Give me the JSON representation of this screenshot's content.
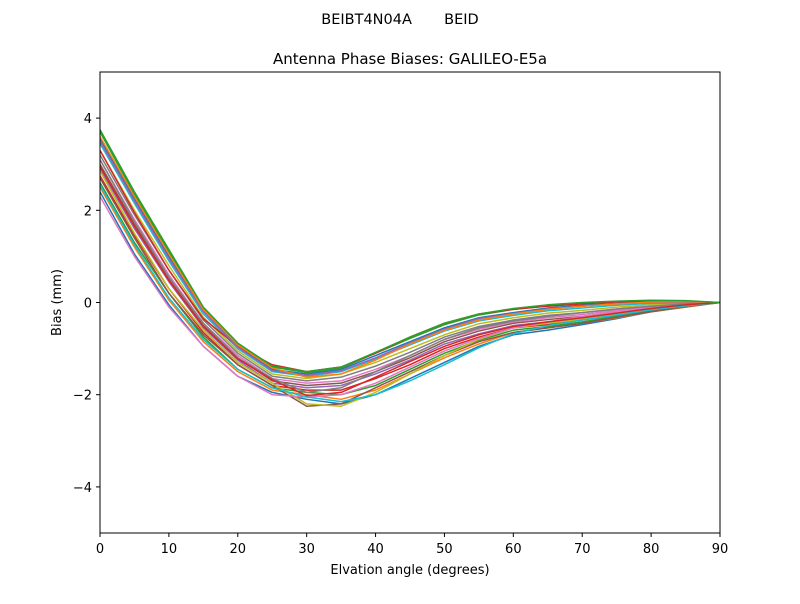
{
  "figure": {
    "suptitle": "BEIBT4N04A       BEID"
  },
  "chart_data": {
    "type": "line",
    "title": "Antenna Phase Biases: GALILEO-E5a",
    "xlabel": "Elvation angle (degrees)",
    "ylabel": "Bias (mm)",
    "xlim": [
      0,
      90
    ],
    "ylim": [
      -5,
      5
    ],
    "xticks": [
      0,
      10,
      20,
      30,
      40,
      50,
      60,
      70,
      80,
      90
    ],
    "yticks": [
      -4,
      -2,
      0,
      2,
      4
    ],
    "xtick_labels": [
      "0",
      "10",
      "20",
      "30",
      "40",
      "50",
      "60",
      "70",
      "80",
      "90"
    ],
    "ytick_labels": [
      "−4",
      "−2",
      "0",
      "2",
      "4"
    ],
    "grid": false,
    "legend": "none",
    "x": [
      0,
      5,
      10,
      15,
      20,
      25,
      30,
      35,
      40,
      45,
      50,
      55,
      60,
      65,
      70,
      75,
      80,
      85,
      90
    ],
    "series": [
      {
        "color": "#1f77b4",
        "values": [
          2.4,
          1.05,
          -0.05,
          -0.95,
          -1.6,
          -1.95,
          -2.1,
          -2.2,
          -2.0,
          -1.65,
          -1.3,
          -0.95,
          -0.7,
          -0.6,
          -0.48,
          -0.35,
          -0.2,
          -0.1,
          0.0
        ]
      },
      {
        "color": "#ff7f0e",
        "values": [
          2.5,
          1.2,
          0.05,
          -0.85,
          -1.5,
          -1.9,
          -2.0,
          -2.1,
          -1.9,
          -1.55,
          -1.2,
          -0.9,
          -0.65,
          -0.55,
          -0.45,
          -0.33,
          -0.2,
          -0.1,
          0.0
        ]
      },
      {
        "color": "#2ca02c",
        "values": [
          2.6,
          1.3,
          0.2,
          -0.75,
          -1.45,
          -1.85,
          -1.95,
          -2.0,
          -1.8,
          -1.45,
          -1.1,
          -0.82,
          -0.6,
          -0.52,
          -0.42,
          -0.3,
          -0.18,
          -0.08,
          0.0
        ]
      },
      {
        "color": "#d62728",
        "values": [
          2.75,
          1.45,
          0.3,
          -0.65,
          -1.35,
          -1.8,
          -1.9,
          -1.9,
          -1.65,
          -1.35,
          -1.0,
          -0.75,
          -0.55,
          -0.48,
          -0.38,
          -0.27,
          -0.16,
          -0.07,
          0.0
        ]
      },
      {
        "color": "#9467bd",
        "values": [
          2.9,
          1.6,
          0.45,
          -0.55,
          -1.25,
          -1.75,
          -1.85,
          -1.8,
          -1.55,
          -1.25,
          -0.9,
          -0.68,
          -0.5,
          -0.42,
          -0.34,
          -0.24,
          -0.14,
          -0.06,
          0.0
        ]
      },
      {
        "color": "#8c564b",
        "values": [
          3.0,
          1.7,
          0.5,
          -0.5,
          -1.2,
          -1.7,
          -1.8,
          -1.75,
          -1.5,
          -1.2,
          -0.85,
          -0.62,
          -0.45,
          -0.37,
          -0.3,
          -0.2,
          -0.12,
          -0.05,
          0.0
        ]
      },
      {
        "color": "#e377c2",
        "values": [
          3.1,
          1.8,
          0.6,
          -0.45,
          -1.15,
          -1.65,
          -1.75,
          -1.7,
          -1.45,
          -1.15,
          -0.8,
          -0.58,
          -0.42,
          -0.33,
          -0.26,
          -0.17,
          -0.1,
          -0.04,
          0.0
        ]
      },
      {
        "color": "#7f7f7f",
        "values": [
          3.2,
          1.9,
          0.7,
          -0.38,
          -1.1,
          -1.6,
          -1.7,
          -1.62,
          -1.38,
          -1.08,
          -0.75,
          -0.52,
          -0.38,
          -0.28,
          -0.22,
          -0.14,
          -0.08,
          -0.03,
          0.0
        ]
      },
      {
        "color": "#bcbd22",
        "values": [
          3.3,
          2.0,
          0.8,
          -0.32,
          -1.05,
          -1.55,
          -1.65,
          -1.55,
          -1.3,
          -1.0,
          -0.7,
          -0.46,
          -0.33,
          -0.23,
          -0.17,
          -0.1,
          -0.05,
          -0.02,
          0.0
        ]
      },
      {
        "color": "#17becf",
        "values": [
          3.45,
          2.15,
          0.9,
          -0.25,
          -1.0,
          -1.5,
          -1.6,
          -1.5,
          -1.22,
          -0.92,
          -0.62,
          -0.4,
          -0.28,
          -0.18,
          -0.12,
          -0.06,
          -0.02,
          -0.01,
          0.0
        ]
      },
      {
        "color": "#1f77b4",
        "values": [
          3.55,
          2.25,
          1.0,
          -0.18,
          -0.95,
          -1.45,
          -1.55,
          -1.45,
          -1.15,
          -0.85,
          -0.55,
          -0.33,
          -0.22,
          -0.12,
          -0.06,
          -0.02,
          0.01,
          0.01,
          0.0
        ]
      },
      {
        "color": "#2ca02c",
        "values": [
          3.7,
          2.35,
          1.1,
          -0.12,
          -0.9,
          -1.4,
          -1.52,
          -1.42,
          -1.1,
          -0.78,
          -0.48,
          -0.27,
          -0.15,
          -0.07,
          -0.02,
          0.02,
          0.04,
          0.03,
          0.0
        ]
      },
      {
        "color": "#d62728",
        "values": [
          3.3,
          1.95,
          0.7,
          -0.35,
          -0.95,
          -1.35,
          -1.5,
          -1.4,
          -1.1,
          -0.75,
          -0.45,
          -0.25,
          -0.15,
          -0.08,
          -0.03,
          0.01,
          0.03,
          0.02,
          0.0
        ]
      },
      {
        "color": "#8c564b",
        "values": [
          2.7,
          1.4,
          0.2,
          -0.7,
          -1.35,
          -1.8,
          -2.25,
          -2.2,
          -1.85,
          -1.5,
          -1.15,
          -0.85,
          -0.65,
          -0.55,
          -0.45,
          -0.32,
          -0.2,
          -0.09,
          0.0
        ]
      },
      {
        "color": "#bcbd22",
        "values": [
          2.85,
          1.5,
          0.3,
          -0.6,
          -1.3,
          -1.75,
          -2.2,
          -2.25,
          -1.95,
          -1.55,
          -1.15,
          -0.8,
          -0.55,
          -0.45,
          -0.36,
          -0.26,
          -0.15,
          -0.07,
          0.0
        ]
      },
      {
        "color": "#e377c2",
        "values": [
          2.3,
          1.0,
          -0.1,
          -0.95,
          -1.6,
          -2.0,
          -2.05,
          -2.0,
          -1.75,
          -1.4,
          -1.05,
          -0.78,
          -0.55,
          -0.42,
          -0.3,
          -0.2,
          -0.12,
          -0.05,
          0.0
        ]
      },
      {
        "color": "#7f7f7f",
        "values": [
          3.1,
          1.75,
          0.55,
          -0.45,
          -1.2,
          -1.65,
          -1.95,
          -1.85,
          -1.5,
          -1.15,
          -0.8,
          -0.55,
          -0.4,
          -0.3,
          -0.22,
          -0.14,
          -0.08,
          -0.03,
          0.0
        ]
      },
      {
        "color": "#17becf",
        "values": [
          2.55,
          1.25,
          0.1,
          -0.8,
          -1.45,
          -1.85,
          -2.05,
          -2.15,
          -2.0,
          -1.7,
          -1.35,
          -0.98,
          -0.68,
          -0.5,
          -0.38,
          -0.27,
          -0.16,
          -0.07,
          0.0
        ]
      },
      {
        "color": "#9467bd",
        "values": [
          3.5,
          2.2,
          0.95,
          -0.2,
          -0.97,
          -1.48,
          -1.58,
          -1.48,
          -1.2,
          -0.88,
          -0.58,
          -0.35,
          -0.24,
          -0.14,
          -0.08,
          -0.03,
          0.0,
          0.01,
          0.0
        ]
      },
      {
        "color": "#ff7f0e",
        "values": [
          3.6,
          2.3,
          1.05,
          -0.15,
          -0.92,
          -1.42,
          -1.62,
          -1.55,
          -1.25,
          -0.9,
          -0.6,
          -0.38,
          -0.25,
          -0.15,
          -0.08,
          -0.03,
          0.01,
          0.02,
          0.0
        ]
      },
      {
        "color": "#d62728",
        "values": [
          2.95,
          1.65,
          0.48,
          -0.52,
          -1.22,
          -1.68,
          -2.02,
          -1.95,
          -1.62,
          -1.28,
          -0.95,
          -0.7,
          -0.52,
          -0.42,
          -0.33,
          -0.23,
          -0.13,
          -0.05,
          0.0
        ]
      },
      {
        "color": "#2ca02c",
        "values": [
          3.75,
          2.4,
          1.15,
          -0.1,
          -0.88,
          -1.38,
          -1.5,
          -1.4,
          -1.08,
          -0.75,
          -0.45,
          -0.25,
          -0.13,
          -0.05,
          0.0,
          0.03,
          0.05,
          0.04,
          0.0
        ]
      }
    ]
  }
}
